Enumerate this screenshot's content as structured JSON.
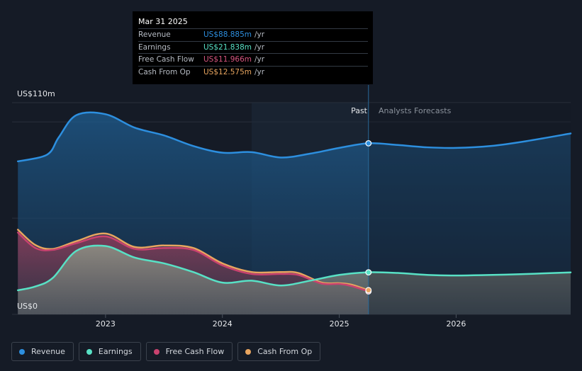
{
  "chart_data": {
    "type": "area",
    "title": "",
    "y_axis": {
      "top_label": "US$110m",
      "bottom_label": "US$0",
      "ylim": [
        0,
        110
      ]
    },
    "x_ticks": [
      {
        "label": "2023",
        "t": 2023.0
      },
      {
        "label": "2024",
        "t": 2024.0
      },
      {
        "label": "2025",
        "t": 2025.0
      },
      {
        "label": "2026",
        "t": 2026.0
      }
    ],
    "xlim": [
      2022.2,
      2026.98
    ],
    "past_cutoff": 2025.25,
    "highlight_start": 2024.25,
    "past_label": "Past",
    "forecast_label": "Analysts Forecasts",
    "series": [
      {
        "key": "revenue",
        "name": "Revenue",
        "color": "#2d8fdf",
        "values": [
          [
            2022.25,
            79.5
          ],
          [
            2022.5,
            83
          ],
          [
            2022.6,
            92
          ],
          [
            2022.75,
            103.5
          ],
          [
            2023.0,
            104
          ],
          [
            2023.25,
            97
          ],
          [
            2023.5,
            93
          ],
          [
            2023.75,
            87.5
          ],
          [
            2024.0,
            84
          ],
          [
            2024.25,
            84.3
          ],
          [
            2024.5,
            81.5
          ],
          [
            2024.75,
            83.5
          ],
          [
            2025.0,
            86.5
          ],
          [
            2025.25,
            88.885
          ],
          [
            2025.5,
            88
          ],
          [
            2025.75,
            86.8
          ],
          [
            2026.0,
            86.5
          ],
          [
            2026.3,
            87.5
          ],
          [
            2026.6,
            90
          ],
          [
            2026.98,
            94
          ]
        ]
      },
      {
        "key": "earnings",
        "name": "Earnings",
        "color": "#58e1c5",
        "values": [
          [
            2022.25,
            12.5
          ],
          [
            2022.4,
            14.5
          ],
          [
            2022.55,
            19
          ],
          [
            2022.75,
            33
          ],
          [
            2023.0,
            35.5
          ],
          [
            2023.25,
            29.5
          ],
          [
            2023.5,
            26.5
          ],
          [
            2023.75,
            22
          ],
          [
            2024.0,
            16.5
          ],
          [
            2024.25,
            17.5
          ],
          [
            2024.5,
            15
          ],
          [
            2024.75,
            17.5
          ],
          [
            2025.0,
            20.5
          ],
          [
            2025.25,
            21.838
          ],
          [
            2025.5,
            21.5
          ],
          [
            2025.75,
            20.5
          ],
          [
            2026.0,
            20.2
          ],
          [
            2026.5,
            20.8
          ],
          [
            2026.98,
            21.8
          ]
        ]
      },
      {
        "key": "fcf",
        "name": "Free Cash Flow",
        "color": "#c9426f",
        "values": [
          [
            2022.25,
            42.5
          ],
          [
            2022.4,
            34.5
          ],
          [
            2022.55,
            33.5
          ],
          [
            2022.75,
            37
          ],
          [
            2023.0,
            40.5
          ],
          [
            2023.25,
            34
          ],
          [
            2023.5,
            34.5
          ],
          [
            2023.75,
            33.5
          ],
          [
            2024.0,
            25.5
          ],
          [
            2024.25,
            21
          ],
          [
            2024.5,
            21
          ],
          [
            2024.65,
            20.5
          ],
          [
            2024.85,
            16
          ],
          [
            2025.0,
            15.8
          ],
          [
            2025.1,
            14.8
          ],
          [
            2025.25,
            11.966
          ]
        ]
      },
      {
        "key": "cfo",
        "name": "Cash From Op",
        "color": "#e8a55f",
        "values": [
          [
            2022.25,
            44
          ],
          [
            2022.4,
            36
          ],
          [
            2022.55,
            34
          ],
          [
            2022.75,
            38
          ],
          [
            2023.0,
            42
          ],
          [
            2023.25,
            35
          ],
          [
            2023.5,
            35.8
          ],
          [
            2023.75,
            34.5
          ],
          [
            2024.0,
            26.5
          ],
          [
            2024.25,
            22
          ],
          [
            2024.5,
            22
          ],
          [
            2024.65,
            21.5
          ],
          [
            2024.85,
            16.5
          ],
          [
            2025.0,
            16.2
          ],
          [
            2025.1,
            15.5
          ],
          [
            2025.25,
            12.575
          ]
        ]
      }
    ]
  },
  "tooltip": {
    "date": "Mar 31 2025",
    "rows": [
      {
        "label": "Revenue",
        "value": "US$88.885m",
        "unit": "/yr",
        "color": "#2d8fdf"
      },
      {
        "label": "Earnings",
        "value": "US$21.838m",
        "unit": "/yr",
        "color": "#58e1c5"
      },
      {
        "label": "Free Cash Flow",
        "value": "US$11.966m",
        "unit": "/yr",
        "color": "#c9426f"
      },
      {
        "label": "Cash From Op",
        "value": "US$12.575m",
        "unit": "/yr",
        "color": "#e8a55f"
      }
    ]
  },
  "legend": [
    {
      "label": "Revenue",
      "color": "#2d8fdf"
    },
    {
      "label": "Earnings",
      "color": "#58e1c5"
    },
    {
      "label": "Free Cash Flow",
      "color": "#c9426f"
    },
    {
      "label": "Cash From Op",
      "color": "#e8a55f"
    }
  ]
}
